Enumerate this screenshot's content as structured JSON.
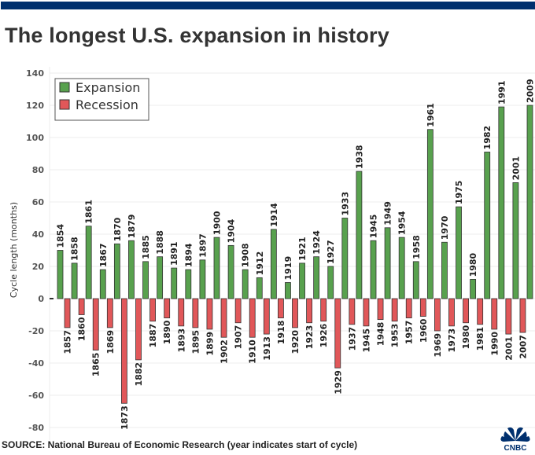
{
  "title": "The longest U.S. expansion in history",
  "source": "SOURCE: National Bureau of Economic Research (year indicates start of cycle)",
  "logo": "CNBC",
  "colors": {
    "expansion": "#58a14e",
    "recession": "#e15759",
    "topbar": "#00306e"
  },
  "chart_data": {
    "type": "bar",
    "title": "The longest U.S. expansion in history",
    "ylabel": "Cycle length (months)",
    "xlabel": "",
    "ylim": [
      -80,
      140
    ],
    "yticks": [
      140,
      120,
      100,
      80,
      60,
      40,
      20,
      0,
      -20,
      -40,
      -60,
      -80
    ],
    "grid": true,
    "legend": {
      "placement": "top-left",
      "entries": [
        "Expansion",
        "Recession"
      ]
    },
    "bars": [
      {
        "year": "1854",
        "type": "Expansion",
        "value": 30
      },
      {
        "year": "1857",
        "type": "Recession",
        "value": -18
      },
      {
        "year": "1858",
        "type": "Expansion",
        "value": 22
      },
      {
        "year": "1860",
        "type": "Recession",
        "value": -10
      },
      {
        "year": "1861",
        "type": "Expansion",
        "value": 45
      },
      {
        "year": "1865",
        "type": "Recession",
        "value": -32
      },
      {
        "year": "1867",
        "type": "Expansion",
        "value": 18
      },
      {
        "year": "1869",
        "type": "Recession",
        "value": -18
      },
      {
        "year": "1870",
        "type": "Expansion",
        "value": 34
      },
      {
        "year": "1873",
        "type": "Recession",
        "value": -65
      },
      {
        "year": "1879",
        "type": "Expansion",
        "value": 36
      },
      {
        "year": "1882",
        "type": "Recession",
        "value": -38
      },
      {
        "year": "1885",
        "type": "Expansion",
        "value": 23
      },
      {
        "year": "1887",
        "type": "Recession",
        "value": -14
      },
      {
        "year": "1888",
        "type": "Expansion",
        "value": 26
      },
      {
        "year": "1890",
        "type": "Recession",
        "value": -12
      },
      {
        "year": "1891",
        "type": "Expansion",
        "value": 19
      },
      {
        "year": "1893",
        "type": "Recession",
        "value": -17
      },
      {
        "year": "1894",
        "type": "Expansion",
        "value": 18
      },
      {
        "year": "1895",
        "type": "Recession",
        "value": -18
      },
      {
        "year": "1897",
        "type": "Expansion",
        "value": 24
      },
      {
        "year": "1899",
        "type": "Recession",
        "value": -19
      },
      {
        "year": "1900",
        "type": "Expansion",
        "value": 38
      },
      {
        "year": "1902",
        "type": "Recession",
        "value": -24
      },
      {
        "year": "1904",
        "type": "Expansion",
        "value": 33
      },
      {
        "year": "1907",
        "type": "Recession",
        "value": -15
      },
      {
        "year": "1908",
        "type": "Expansion",
        "value": 18
      },
      {
        "year": "1910",
        "type": "Recession",
        "value": -24
      },
      {
        "year": "1912",
        "type": "Expansion",
        "value": 13
      },
      {
        "year": "1913",
        "type": "Recession",
        "value": -22
      },
      {
        "year": "1914",
        "type": "Expansion",
        "value": 43
      },
      {
        "year": "1918",
        "type": "Recession",
        "value": -12
      },
      {
        "year": "1919",
        "type": "Expansion",
        "value": 10
      },
      {
        "year": "1920",
        "type": "Recession",
        "value": -18
      },
      {
        "year": "1921",
        "type": "Expansion",
        "value": 22
      },
      {
        "year": "1923",
        "type": "Recession",
        "value": -15
      },
      {
        "year": "1924",
        "type": "Expansion",
        "value": 26
      },
      {
        "year": "1926",
        "type": "Recession",
        "value": -14
      },
      {
        "year": "1927",
        "type": "Expansion",
        "value": 20
      },
      {
        "year": "1929",
        "type": "Recession",
        "value": -43
      },
      {
        "year": "1933",
        "type": "Expansion",
        "value": 50
      },
      {
        "year": "1937",
        "type": "Recession",
        "value": -16
      },
      {
        "year": "1938",
        "type": "Expansion",
        "value": 79
      },
      {
        "year": "1945",
        "type": "Recession",
        "value": -17
      },
      {
        "year": "1945",
        "type": "Expansion",
        "value": 36
      },
      {
        "year": "1948",
        "type": "Recession",
        "value": -13
      },
      {
        "year": "1949",
        "type": "Expansion",
        "value": 44
      },
      {
        "year": "1953",
        "type": "Recession",
        "value": -14
      },
      {
        "year": "1954",
        "type": "Expansion",
        "value": 38
      },
      {
        "year": "1957",
        "type": "Recession",
        "value": -12
      },
      {
        "year": "1958",
        "type": "Expansion",
        "value": 23
      },
      {
        "year": "1960",
        "type": "Recession",
        "value": -11
      },
      {
        "year": "1961",
        "type": "Expansion",
        "value": 105
      },
      {
        "year": "1969",
        "type": "Recession",
        "value": -20
      },
      {
        "year": "1970",
        "type": "Expansion",
        "value": 35
      },
      {
        "year": "1973",
        "type": "Recession",
        "value": -17
      },
      {
        "year": "1975",
        "type": "Expansion",
        "value": 57
      },
      {
        "year": "1980",
        "type": "Recession",
        "value": -15
      },
      {
        "year": "1980",
        "type": "Expansion",
        "value": 12
      },
      {
        "year": "1981",
        "type": "Recession",
        "value": -16
      },
      {
        "year": "1982",
        "type": "Expansion",
        "value": 91
      },
      {
        "year": "1990",
        "type": "Recession",
        "value": -19
      },
      {
        "year": "1991",
        "type": "Expansion",
        "value": 119
      },
      {
        "year": "2001",
        "type": "Recession",
        "value": -22
      },
      {
        "year": "2001",
        "type": "Expansion",
        "value": 72
      },
      {
        "year": "2007",
        "type": "Recession",
        "value": -21
      },
      {
        "year": "2009",
        "type": "Expansion",
        "value": 120
      }
    ]
  }
}
